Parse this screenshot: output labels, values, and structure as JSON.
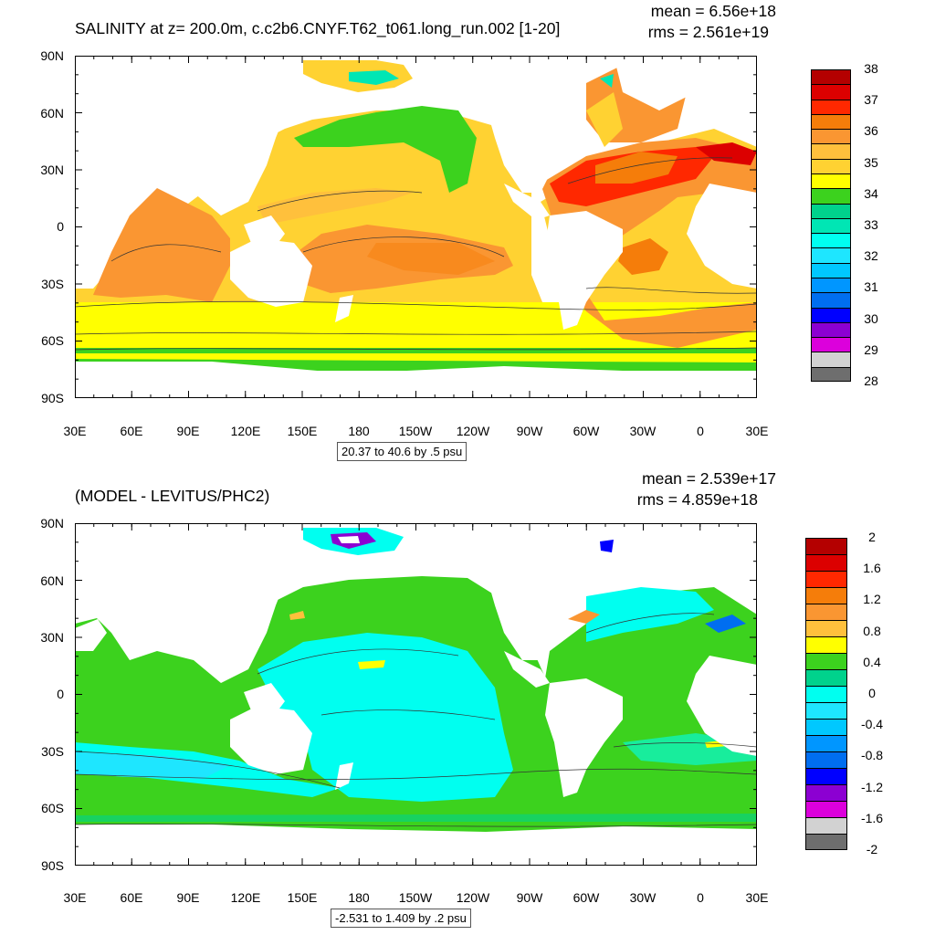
{
  "panel1": {
    "title": "SALINITY at z= 200.0m, c.c2b6.CNYF.T62_t061.long_run.002 [1-20]",
    "mean": "mean = 6.56e+18",
    "rms": "rms = 2.561e+19",
    "info": "20.37 to 40.6 by .5 psu",
    "lat_labels": [
      "90N",
      "60N",
      "30N",
      "0",
      "30S",
      "60S",
      "90S"
    ],
    "lon_labels": [
      "30E",
      "60E",
      "90E",
      "120E",
      "150E",
      "180",
      "150W",
      "120W",
      "90W",
      "60W",
      "30W",
      "0",
      "30E"
    ],
    "colorbar": {
      "labels": [
        "38",
        "37",
        "36",
        "35",
        "34",
        "33",
        "32",
        "31",
        "30",
        "29",
        "28"
      ],
      "colors": [
        "#b40000",
        "#dc0000",
        "#ff2800",
        "#f57d0a",
        "#fa9632",
        "#ffc03c",
        "#ffd232",
        "#ffff00",
        "#3cd21e",
        "#00d28c",
        "#00e6b4",
        "#00fff0",
        "#1ee6ff",
        "#00c8ff",
        "#0096ff",
        "#006ef0",
        "#0000ff",
        "#8c00d2",
        "#dc00dc",
        "#d2d2d2",
        "#6e6e6e"
      ]
    }
  },
  "panel2": {
    "title": "(MODEL - LEVITUS/PHC2)",
    "mean": "mean = 2.539e+17",
    "rms": "rms = 4.859e+18",
    "info": "-2.531 to 1.409 by .2 psu",
    "lat_labels": [
      "90N",
      "60N",
      "30N",
      "0",
      "30S",
      "60S",
      "90S"
    ],
    "lon_labels": [
      "30E",
      "60E",
      "90E",
      "120E",
      "150E",
      "180",
      "150W",
      "120W",
      "90W",
      "60W",
      "30W",
      "0",
      "30E"
    ],
    "colorbar": {
      "labels": [
        "2",
        "1.6",
        "1.2",
        "0.8",
        "0.4",
        "0",
        "-0.4",
        "-0.8",
        "-1.2",
        "-1.6",
        "-2"
      ],
      "colors": [
        "#b40000",
        "#dc0000",
        "#ff2800",
        "#f57d0a",
        "#fa9632",
        "#ffc03c",
        "#ffff00",
        "#3cd21e",
        "#00d28c",
        "#00fff0",
        "#1ee6ff",
        "#00c8ff",
        "#0096ff",
        "#006ef0",
        "#0000ff",
        "#8c00d2",
        "#dc00dc",
        "#d2d2d2",
        "#6e6e6e"
      ]
    }
  }
}
